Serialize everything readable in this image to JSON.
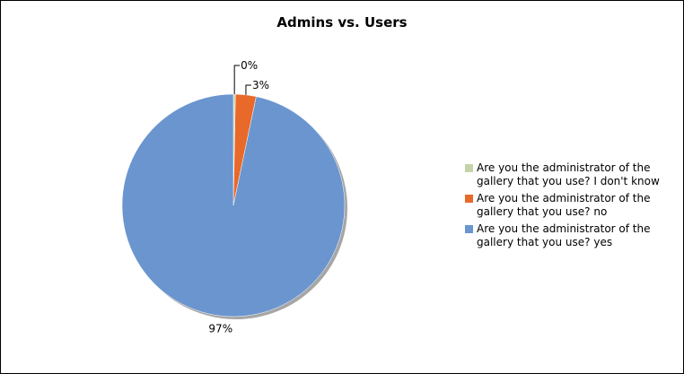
{
  "chart_data": {
    "type": "pie",
    "title": "Admins vs. Users",
    "slices": [
      {
        "label": "Are you the administrator of the gallery that you use?  I don't know",
        "value": 0.3,
        "display": "0%",
        "color": "#c6d3a8"
      },
      {
        "label": "Are you the administrator of the gallery that you use?  no",
        "value": 3,
        "display": "3%",
        "color": "#e8692a"
      },
      {
        "label": "Are you the administrator of the gallery that you use?  yes",
        "value": 97,
        "display": "97%",
        "color": "#6a95cf"
      }
    ],
    "legend_position": "right",
    "start_angle_deg": 0,
    "direction": "clockwise"
  }
}
